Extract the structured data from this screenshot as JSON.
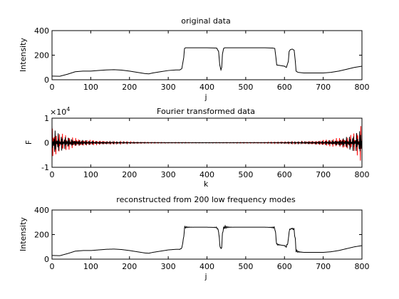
{
  "figure": {
    "background": "#ffffff"
  },
  "chart_data": [
    {
      "type": "line",
      "title": "original data",
      "xlabel": "j",
      "ylabel": "Intensity",
      "xlim": [
        0,
        800
      ],
      "ylim": [
        0,
        400
      ],
      "xticks": [
        0,
        100,
        200,
        300,
        400,
        500,
        600,
        700,
        800
      ],
      "yticks": [
        0,
        200,
        400
      ],
      "series": [
        {
          "color": "#000000",
          "x": [
            0,
            20,
            40,
            60,
            80,
            100,
            120,
            140,
            160,
            180,
            200,
            220,
            240,
            250,
            260,
            280,
            300,
            320,
            330,
            335,
            340,
            342,
            345,
            350,
            400,
            425,
            430,
            433,
            436,
            438,
            440,
            443,
            446,
            450,
            500,
            550,
            570,
            575,
            578,
            580,
            590,
            600,
            605,
            610,
            612,
            615,
            620,
            625,
            628,
            630,
            635,
            650,
            700,
            720,
            740,
            760,
            780,
            800
          ],
          "y": [
            30,
            28,
            45,
            65,
            70,
            70,
            75,
            80,
            82,
            78,
            70,
            60,
            50,
            48,
            55,
            65,
            75,
            80,
            80,
            90,
            180,
            255,
            260,
            260,
            260,
            258,
            230,
            120,
            80,
            100,
            210,
            255,
            260,
            260,
            260,
            260,
            258,
            255,
            180,
            120,
            115,
            110,
            100,
            150,
            230,
            245,
            250,
            240,
            150,
            70,
            60,
            55,
            55,
            60,
            70,
            85,
            100,
            110
          ]
        }
      ]
    },
    {
      "type": "line",
      "title": "Fourier transformed data",
      "xlabel": "k",
      "ylabel": "F",
      "xlim": [
        0,
        800
      ],
      "ylim": [
        -1,
        1
      ],
      "xticks": [
        0,
        100,
        200,
        300,
        400,
        500,
        600,
        700,
        800
      ],
      "yticks": [
        -1,
        0,
        1
      ],
      "y_multiplier": "×10",
      "y_multiplier_exponent": "4",
      "series": [
        {
          "name": "",
          "color": "#ff0000",
          "amplitude_envelope": [
            [
              0,
              1.0
            ],
            [
              5,
              0.7
            ],
            [
              15,
              0.45
            ],
            [
              40,
              0.3
            ],
            [
              80,
              0.15
            ],
            [
              150,
              0.05
            ],
            [
              250,
              0.02
            ],
            [
              400,
              0.01
            ],
            [
              550,
              0.02
            ],
            [
              650,
              0.05
            ],
            [
              720,
              0.15
            ],
            [
              760,
              0.3
            ],
            [
              785,
              0.45
            ],
            [
              795,
              0.7
            ],
            [
              800,
              1.0
            ]
          ]
        },
        {
          "name": "",
          "color": "#000000",
          "amplitude_envelope": [
            [
              0,
              0.9
            ],
            [
              5,
              0.55
            ],
            [
              20,
              0.35
            ],
            [
              60,
              0.15
            ],
            [
              120,
              0.05
            ],
            [
              250,
              0.01
            ],
            [
              550,
              0.01
            ],
            [
              680,
              0.05
            ],
            [
              740,
              0.15
            ],
            [
              780,
              0.35
            ],
            [
              795,
              0.55
            ],
            [
              800,
              0.9
            ]
          ]
        }
      ]
    },
    {
      "type": "line",
      "title": "reconstructed from 200 low frequency modes",
      "xlabel": "j",
      "ylabel": "Intensity",
      "xlim": [
        0,
        800
      ],
      "ylim": [
        0,
        400
      ],
      "xticks": [
        0,
        100,
        200,
        300,
        400,
        500,
        600,
        700,
        800
      ],
      "yticks": [
        0,
        200,
        400
      ],
      "series": [
        {
          "color": "#000000",
          "x": [
            0,
            20,
            40,
            60,
            80,
            100,
            120,
            140,
            160,
            180,
            200,
            220,
            240,
            250,
            260,
            280,
            300,
            320,
            330,
            335,
            340,
            342,
            345,
            350,
            400,
            425,
            430,
            433,
            436,
            438,
            440,
            443,
            446,
            450,
            500,
            550,
            570,
            575,
            578,
            580,
            590,
            600,
            605,
            610,
            612,
            615,
            620,
            625,
            628,
            630,
            635,
            650,
            700,
            720,
            740,
            760,
            780,
            800
          ],
          "y": [
            30,
            28,
            45,
            65,
            70,
            70,
            75,
            80,
            82,
            78,
            70,
            60,
            50,
            48,
            55,
            65,
            75,
            80,
            80,
            90,
            180,
            255,
            260,
            260,
            260,
            258,
            230,
            120,
            80,
            100,
            210,
            255,
            260,
            260,
            260,
            260,
            258,
            255,
            180,
            120,
            115,
            110,
            100,
            150,
            230,
            245,
            250,
            240,
            150,
            70,
            60,
            55,
            55,
            60,
            70,
            85,
            100,
            110
          ],
          "ripple": true
        }
      ]
    }
  ]
}
